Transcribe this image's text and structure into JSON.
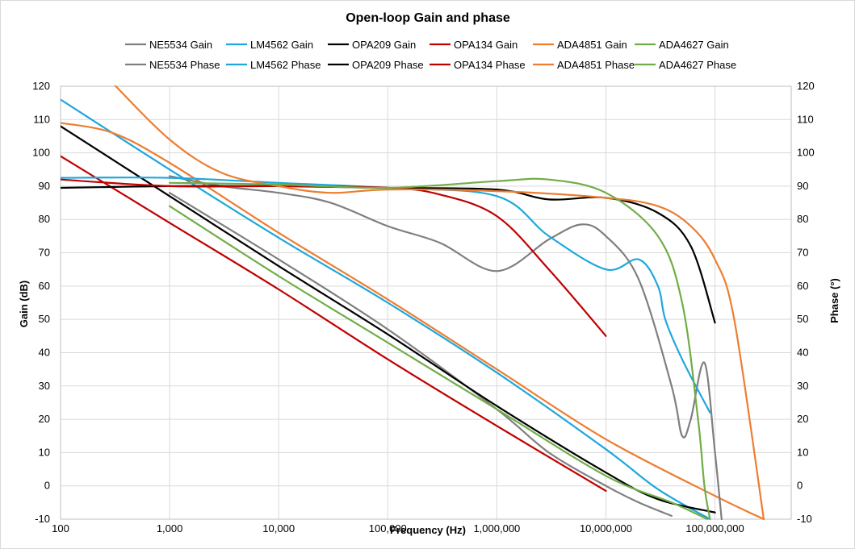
{
  "chart_data": {
    "type": "line",
    "title": "Open-loop Gain and phase",
    "xlabel": "Frequency (Hz)",
    "ylabel": "Gain (dB)",
    "y2label": "Phase (°)",
    "xscale": "log",
    "xlim": [
      100,
      500000000
    ],
    "ylim": [
      -10,
      120
    ],
    "y2lim": [
      -10,
      120
    ],
    "x_ticks": [
      100,
      1000,
      10000,
      100000,
      1000000,
      10000000,
      100000000
    ],
    "x_tick_labels": [
      "100",
      "1,000",
      "10,000",
      "100,000",
      "1,000,000",
      "10,000,000",
      "100,000,000"
    ],
    "y_ticks": [
      -10,
      0,
      10,
      20,
      30,
      40,
      50,
      60,
      70,
      80,
      90,
      100,
      110,
      120
    ],
    "grid": true,
    "legend": "top",
    "series": [
      {
        "name": "NE5534 Gain",
        "axis": "left",
        "color": "#7f7f7f",
        "x": [
          1000,
          10000,
          100000,
          1000000,
          3000000,
          10000000,
          20000000,
          40000000
        ],
        "y": [
          88,
          68,
          47,
          23,
          10,
          0,
          -5,
          -9
        ]
      },
      {
        "name": "LM4562 Gain",
        "axis": "left",
        "color": "#1ea7dc",
        "x": [
          100,
          1000,
          10000,
          100000,
          1000000,
          10000000,
          30000000,
          90000000
        ],
        "y": [
          116,
          95,
          74.5,
          55,
          34,
          11,
          -1,
          -10
        ]
      },
      {
        "name": "OPA209 Gain",
        "axis": "left",
        "color": "#000000",
        "x": [
          100,
          1000,
          10000,
          100000,
          1000000,
          10000000,
          30000000,
          100000000
        ],
        "y": [
          108,
          87,
          66,
          45.5,
          24,
          4,
          -4,
          -8
        ]
      },
      {
        "name": "OPA134 Gain",
        "axis": "left",
        "color": "#c00000",
        "x": [
          100,
          1000,
          10000,
          100000,
          1000000,
          10000000
        ],
        "y": [
          99,
          79,
          59,
          38,
          18,
          -1.5
        ]
      },
      {
        "name": "ADA4851 Gain",
        "axis": "left",
        "color": "#ed7d31",
        "x": [
          100,
          300,
          1000,
          10000,
          100000,
          1000000,
          10000000,
          100000000,
          280000000
        ],
        "y": [
          109,
          106,
          97,
          76,
          56,
          35,
          14,
          -3,
          -10
        ]
      },
      {
        "name": "ADA4627 Gain",
        "axis": "left",
        "color": "#70ad47",
        "x": [
          1000,
          10000,
          100000,
          1000000,
          10000000,
          40000000,
          85000000
        ],
        "y": [
          84,
          63,
          43,
          23,
          3,
          -5,
          -10
        ]
      },
      {
        "name": "NE5534 Phase",
        "axis": "right",
        "color": "#7f7f7f",
        "x": [
          1000,
          3000,
          10000,
          30000,
          100000,
          300000,
          1000000,
          3000000,
          6000000,
          10000000,
          20000000,
          40000000,
          50000000,
          60000000,
          80000000,
          100000000,
          115000000
        ],
        "y": [
          93,
          90,
          88,
          85,
          78,
          73,
          64.5,
          74,
          78.5,
          75,
          62,
          30,
          15,
          20,
          37,
          10,
          -10
        ]
      },
      {
        "name": "LM4562 Phase",
        "axis": "right",
        "color": "#1ea7dc",
        "x": [
          100,
          1000,
          10000,
          100000,
          1000000,
          3000000,
          10000000,
          20000000,
          30000000,
          35000000,
          50000000,
          90000000
        ],
        "y": [
          92.5,
          92.5,
          91,
          89.5,
          87,
          75,
          65,
          68,
          60,
          50,
          38,
          22
        ]
      },
      {
        "name": "OPA209 Phase",
        "axis": "right",
        "color": "#000000",
        "x": [
          100,
          1000,
          10000,
          100000,
          1000000,
          3000000,
          10000000,
          30000000,
          60000000,
          100000000
        ],
        "y": [
          89.5,
          90,
          90,
          89.5,
          89,
          86,
          86.5,
          82,
          72,
          49
        ]
      },
      {
        "name": "OPA134 Phase",
        "axis": "right",
        "color": "#c00000",
        "x": [
          100,
          1000,
          10000,
          100000,
          300000,
          1000000,
          3000000,
          10000000
        ],
        "y": [
          92,
          90,
          90,
          89.5,
          87.5,
          81,
          65,
          45
        ]
      },
      {
        "name": "ADA4851 Phase",
        "axis": "right",
        "color": "#ed7d31",
        "x": [
          300,
          1000,
          3000,
          10000,
          30000,
          100000,
          1000000,
          10000000,
          30000000,
          60000000,
          100000000,
          150000000,
          280000000
        ],
        "y": [
          121,
          104,
          94,
          90,
          88,
          89,
          88.5,
          86.5,
          84,
          78,
          68,
          50,
          -10
        ]
      },
      {
        "name": "ADA4627 Phase",
        "axis": "right",
        "color": "#70ad47",
        "x": [
          1000,
          10000,
          100000,
          1000000,
          3000000,
          10000000,
          30000000,
          50000000,
          70000000,
          80000000,
          90000000
        ],
        "y": [
          91,
          90.5,
          89.5,
          91.5,
          92,
          88,
          75,
          55,
          20,
          0,
          -10
        ]
      }
    ]
  }
}
